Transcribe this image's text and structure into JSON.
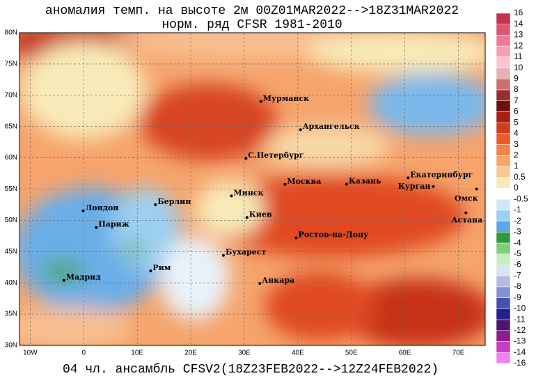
{
  "title": [
    "аномалия темп. на высоте 2м 00Z01MAR2022-->18Z31MAR2022",
    "норм. ряд CFSR 1981-2010"
  ],
  "footer": "04 чл. ансамбль CFSV2(18Z23FEB2022-->12Z24FEB2022)",
  "lonlim": [
    -12,
    75
  ],
  "latlim": [
    30,
    80
  ],
  "lat_ticks": [
    {
      "value": 80,
      "label": "80N"
    },
    {
      "value": 75,
      "label": "75N"
    },
    {
      "value": 70,
      "label": "70N"
    },
    {
      "value": 65,
      "label": "65N"
    },
    {
      "value": 60,
      "label": "60N"
    },
    {
      "value": 55,
      "label": "55N"
    },
    {
      "value": 50,
      "label": "50N"
    },
    {
      "value": 45,
      "label": "45N"
    },
    {
      "value": 40,
      "label": "40N"
    },
    {
      "value": 35,
      "label": "35N"
    },
    {
      "value": 30,
      "label": "30N"
    }
  ],
  "lon_ticks": [
    {
      "value": -10,
      "label": "10W"
    },
    0,
    {
      "value": 10,
      "label": "10E"
    },
    {
      "value": 20,
      "label": "20E"
    },
    {
      "value": 30,
      "label": "30E"
    },
    {
      "value": 40,
      "label": "40E"
    },
    {
      "value": 50,
      "label": "50E"
    },
    {
      "value": 60,
      "label": "60E"
    },
    {
      "value": 70,
      "label": "70E"
    }
  ],
  "cities": [
    {
      "name": "Мурманск",
      "lon": 33.1,
      "lat": 69.0
    },
    {
      "name": "Архангельск",
      "lon": 40.5,
      "lat": 64.5
    },
    {
      "name": "С.Петербург",
      "lon": 30.3,
      "lat": 59.9
    },
    {
      "name": "Москва",
      "lon": 37.6,
      "lat": 55.75
    },
    {
      "name": "Казань",
      "lon": 49.1,
      "lat": 55.8
    },
    {
      "name": "Екатеринбург",
      "lon": 60.6,
      "lat": 56.8
    },
    {
      "name": "Курган",
      "lon": 65.3,
      "lat": 55.4
    },
    {
      "name": "Омск",
      "lon": 73.4,
      "lat": 55.0
    },
    {
      "name": "Астана",
      "lon": 71.4,
      "lat": 51.2
    },
    {
      "name": "Минск",
      "lon": 27.6,
      "lat": 53.9
    },
    {
      "name": "Киев",
      "lon": 30.5,
      "lat": 50.45
    },
    {
      "name": "Берлин",
      "lon": 13.4,
      "lat": 52.5
    },
    {
      "name": "Лондон",
      "lon": -0.1,
      "lat": 51.5
    },
    {
      "name": "Париж",
      "lon": 2.35,
      "lat": 48.85
    },
    {
      "name": "Ростов-на-Дону",
      "lon": 39.7,
      "lat": 47.2
    },
    {
      "name": "Бухарест",
      "lon": 26.1,
      "lat": 44.4
    },
    {
      "name": "Рим",
      "lon": 12.5,
      "lat": 41.9
    },
    {
      "name": "Мадрид",
      "lon": -3.7,
      "lat": 40.4
    },
    {
      "name": "Анкара",
      "lon": 32.9,
      "lat": 39.9
    }
  ],
  "colorbar": {
    "levels": [
      16,
      14,
      13,
      12,
      11,
      10,
      9,
      8,
      7,
      6,
      5,
      4,
      3,
      2,
      1,
      0.5,
      0,
      -0.5,
      -1,
      -2,
      -3,
      -4,
      -5,
      -6,
      -7,
      -8,
      -9,
      -10,
      -11,
      -12,
      -13,
      -14,
      -16
    ],
    "colors": [
      "#c8304c",
      "#dc5872",
      "#ec7c94",
      "#f4a0b2",
      "#f8c4d0",
      "#e8b0b0",
      "#c87070",
      "#983030",
      "#6c1010",
      "#a82010",
      "#d03c1c",
      "#ea5c2c",
      "#f58048",
      "#f8a468",
      "#fac892",
      "#f8eab8",
      "#ffffff",
      "#cce8f8",
      "#9ccff0",
      "#5aa6e8",
      "#2f9a3a",
      "#7fcf7a",
      "#c8ecc0",
      "#d6e4f4",
      "#b4bce2",
      "#8494d2",
      "#4452b4",
      "#20208e",
      "#4e1472",
      "#8c1e8e",
      "#c440c4",
      "#f282f2"
    ]
  }
}
